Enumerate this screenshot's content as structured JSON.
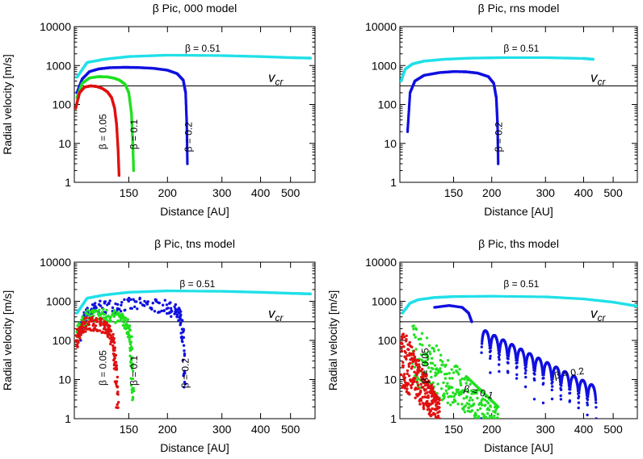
{
  "chart_data": [
    {
      "type": "scatter",
      "title": "β Pic, 000 model",
      "xlabel": "Distance [AU]",
      "ylabel": "Radial velocity [m/s]",
      "yscale": "log",
      "xscale": "log",
      "xlim": [
        100,
        600
      ],
      "ylim": [
        1,
        10000
      ],
      "xticks": [
        150,
        200,
        300,
        400,
        500
      ],
      "yticks": [
        1,
        10,
        100,
        1000,
        10000
      ],
      "hline": {
        "y": 300,
        "label": "v",
        "sub": "cr"
      },
      "series": [
        {
          "name": "β = 0.51",
          "color": "#20e0e8",
          "style": "dense",
          "x": [
            102,
            110,
            125,
            150,
            200,
            300,
            400,
            500,
            580
          ],
          "y": [
            500,
            1200,
            1450,
            1700,
            1850,
            1800,
            1700,
            1600,
            1550
          ]
        },
        {
          "name": "β = 0.2",
          "color": "#1010e0",
          "style": "dense",
          "x": [
            102,
            106,
            112,
            120,
            130,
            145,
            160,
            180,
            200,
            215,
            225,
            229,
            231,
            232
          ],
          "y": [
            200,
            450,
            700,
            820,
            880,
            900,
            890,
            850,
            760,
            620,
            420,
            200,
            30,
            3
          ]
        },
        {
          "name": "β = 0.1",
          "color": "#20e020",
          "style": "dense",
          "x": [
            102,
            106,
            112,
            120,
            128,
            135,
            140,
            146,
            150,
            153,
            154.5,
            155.5
          ],
          "y": [
            150,
            350,
            480,
            520,
            510,
            470,
            420,
            330,
            200,
            60,
            10,
            2
          ]
        },
        {
          "name": "β = 0.05",
          "color": "#e01010",
          "style": "dense",
          "x": [
            101,
            104,
            108,
            113,
            118,
            123,
            128,
            132,
            135,
            137,
            138.5,
            139.5
          ],
          "y": [
            80,
            200,
            280,
            300,
            290,
            260,
            210,
            150,
            80,
            30,
            7,
            1.5
          ]
        }
      ],
      "annotations": [
        {
          "text": "β = 0.51",
          "x": 260,
          "y": 2300,
          "rotate": 0
        },
        {
          "text": "β = 0.2",
          "x": 240,
          "y": 6,
          "rotate": -90
        },
        {
          "text": "β = 0.1",
          "x": 160,
          "y": 7,
          "rotate": -90
        },
        {
          "text": "β = 0.05",
          "x": 127,
          "y": 7,
          "rotate": -90
        }
      ]
    },
    {
      "type": "scatter",
      "title": "β Pic, rns model",
      "xlabel": "Distance [AU]",
      "ylabel": "",
      "yscale": "log",
      "xscale": "log",
      "xlim": [
        100,
        600
      ],
      "ylim": [
        1,
        10000
      ],
      "xticks": [
        150,
        200,
        300,
        400,
        500
      ],
      "yticks": [
        1,
        10,
        100,
        1000,
        10000
      ],
      "hline": {
        "y": 300,
        "label": "v",
        "sub": "cr"
      },
      "series": [
        {
          "name": "β = 0.51",
          "color": "#20e0e8",
          "style": "dense",
          "x": [
            101,
            104,
            110,
            120,
            140,
            170,
            220,
            300,
            400,
            430
          ],
          "y": [
            400,
            800,
            1100,
            1300,
            1450,
            1550,
            1600,
            1600,
            1520,
            1450
          ]
        },
        {
          "name": "β = 0.2",
          "color": "#1010e0",
          "style": "dense",
          "x": [
            106,
            108,
            112,
            120,
            135,
            150,
            165,
            180,
            195,
            203,
            207,
            209,
            210
          ],
          "y": [
            20,
            200,
            400,
            560,
            660,
            700,
            690,
            640,
            520,
            350,
            150,
            30,
            3
          ]
        }
      ],
      "annotations": [
        {
          "text": "β = 0.51",
          "x": 250,
          "y": 2300,
          "rotate": 0
        },
        {
          "text": "β = 0.2",
          "x": 216,
          "y": 6,
          "rotate": -90
        }
      ]
    },
    {
      "type": "scatter",
      "title": "β Pic, tns model",
      "xlabel": "Distance [AU]",
      "ylabel": "Radial velocity [m/s]",
      "yscale": "log",
      "xscale": "log",
      "xlim": [
        100,
        600
      ],
      "ylim": [
        1,
        10000
      ],
      "xticks": [
        150,
        200,
        300,
        400,
        500
      ],
      "yticks": [
        1,
        10,
        100,
        1000,
        10000
      ],
      "hline": {
        "y": 300,
        "label": "v",
        "sub": "cr"
      },
      "series": [
        {
          "name": "β = 0.51",
          "color": "#20e0e8",
          "style": "dense",
          "x": [
            102,
            110,
            125,
            150,
            200,
            300,
            400,
            500,
            580
          ],
          "y": [
            500,
            1200,
            1450,
            1700,
            1850,
            1800,
            1700,
            1600,
            1550
          ]
        },
        {
          "name": "β = 0.2",
          "color": "#1010e0",
          "style": "scatter",
          "x": [
            104,
            108,
            115,
            125,
            140,
            160,
            180,
            200,
            212,
            220,
            225,
            228
          ],
          "y": [
            150,
            400,
            600,
            720,
            800,
            820,
            790,
            700,
            560,
            380,
            120,
            5
          ]
        },
        {
          "name": "β = 0.1",
          "color": "#20e020",
          "style": "scatter",
          "x": [
            102,
            106,
            112,
            120,
            130,
            140,
            147,
            151,
            153,
            155
          ],
          "y": [
            120,
            300,
            420,
            450,
            430,
            370,
            280,
            150,
            40,
            3
          ]
        },
        {
          "name": "β = 0.05",
          "color": "#e01010",
          "style": "scatter",
          "x": [
            101,
            104,
            108,
            114,
            120,
            126,
            130,
            134,
            136,
            138
          ],
          "y": [
            70,
            180,
            250,
            270,
            260,
            220,
            160,
            80,
            20,
            2
          ]
        }
      ],
      "annotations": [
        {
          "text": "β = 0.51",
          "x": 250,
          "y": 2300,
          "rotate": 0
        },
        {
          "text": "β = 0.2",
          "x": 234,
          "y": 6,
          "rotate": -90
        },
        {
          "text": "β = 0.1",
          "x": 160,
          "y": 7,
          "rotate": -90
        },
        {
          "text": "β = 0.05",
          "x": 127,
          "y": 7,
          "rotate": -90
        }
      ]
    },
    {
      "type": "scatter",
      "title": "β Pic, ths model",
      "xlabel": "Distance [AU]",
      "ylabel": "Radial velocity [m/s]",
      "yscale": "log",
      "xscale": "log",
      "xlim": [
        100,
        600
      ],
      "ylim": [
        1,
        10000
      ],
      "xticks": [
        150,
        200,
        300,
        400,
        500
      ],
      "yticks": [
        1,
        10,
        100,
        1000,
        10000
      ],
      "hline": {
        "y": 300,
        "label": "v",
        "sub": "cr"
      },
      "series": [
        {
          "name": "β = 0.51",
          "color": "#20e0e8",
          "style": "dense",
          "x": [
            102,
            108,
            115,
            130,
            150,
            200,
            300,
            400,
            500,
            600
          ],
          "y": [
            500,
            900,
            1100,
            1250,
            1320,
            1350,
            1300,
            1150,
            950,
            750
          ]
        },
        {
          "name": "β = 0.2",
          "color": "#1010e0",
          "style": "oscillate",
          "x0": 185,
          "x1": 440,
          "ystart": 200,
          "yend": 6,
          "cycles": 13,
          "extra": {
            "x": [
              130,
              145,
              160,
              168,
              172
            ],
            "y": [
              700,
              780,
              700,
              500,
              300
            ]
          }
        },
        {
          "name": "β = 0.1",
          "color": "#20e020",
          "style": "noisy",
          "x0": 110,
          "x1": 210,
          "ystart": 300,
          "yend": 2
        },
        {
          "name": "β = 0.05",
          "color": "#e01010",
          "style": "noisy",
          "x0": 101,
          "x1": 135,
          "ystart": 250,
          "yend": 3
        }
      ],
      "annotations": [
        {
          "text": "β = 0.51",
          "x": 250,
          "y": 2300,
          "rotate": 0
        },
        {
          "text": "β = 0.2",
          "x": 360,
          "y": 12,
          "rotate": -10
        },
        {
          "text": "β = 0.1",
          "x": 180,
          "y": 4,
          "rotate": 15
        },
        {
          "text": "β = 0.05",
          "x": 124,
          "y": 8,
          "rotate": -90
        }
      ]
    }
  ]
}
